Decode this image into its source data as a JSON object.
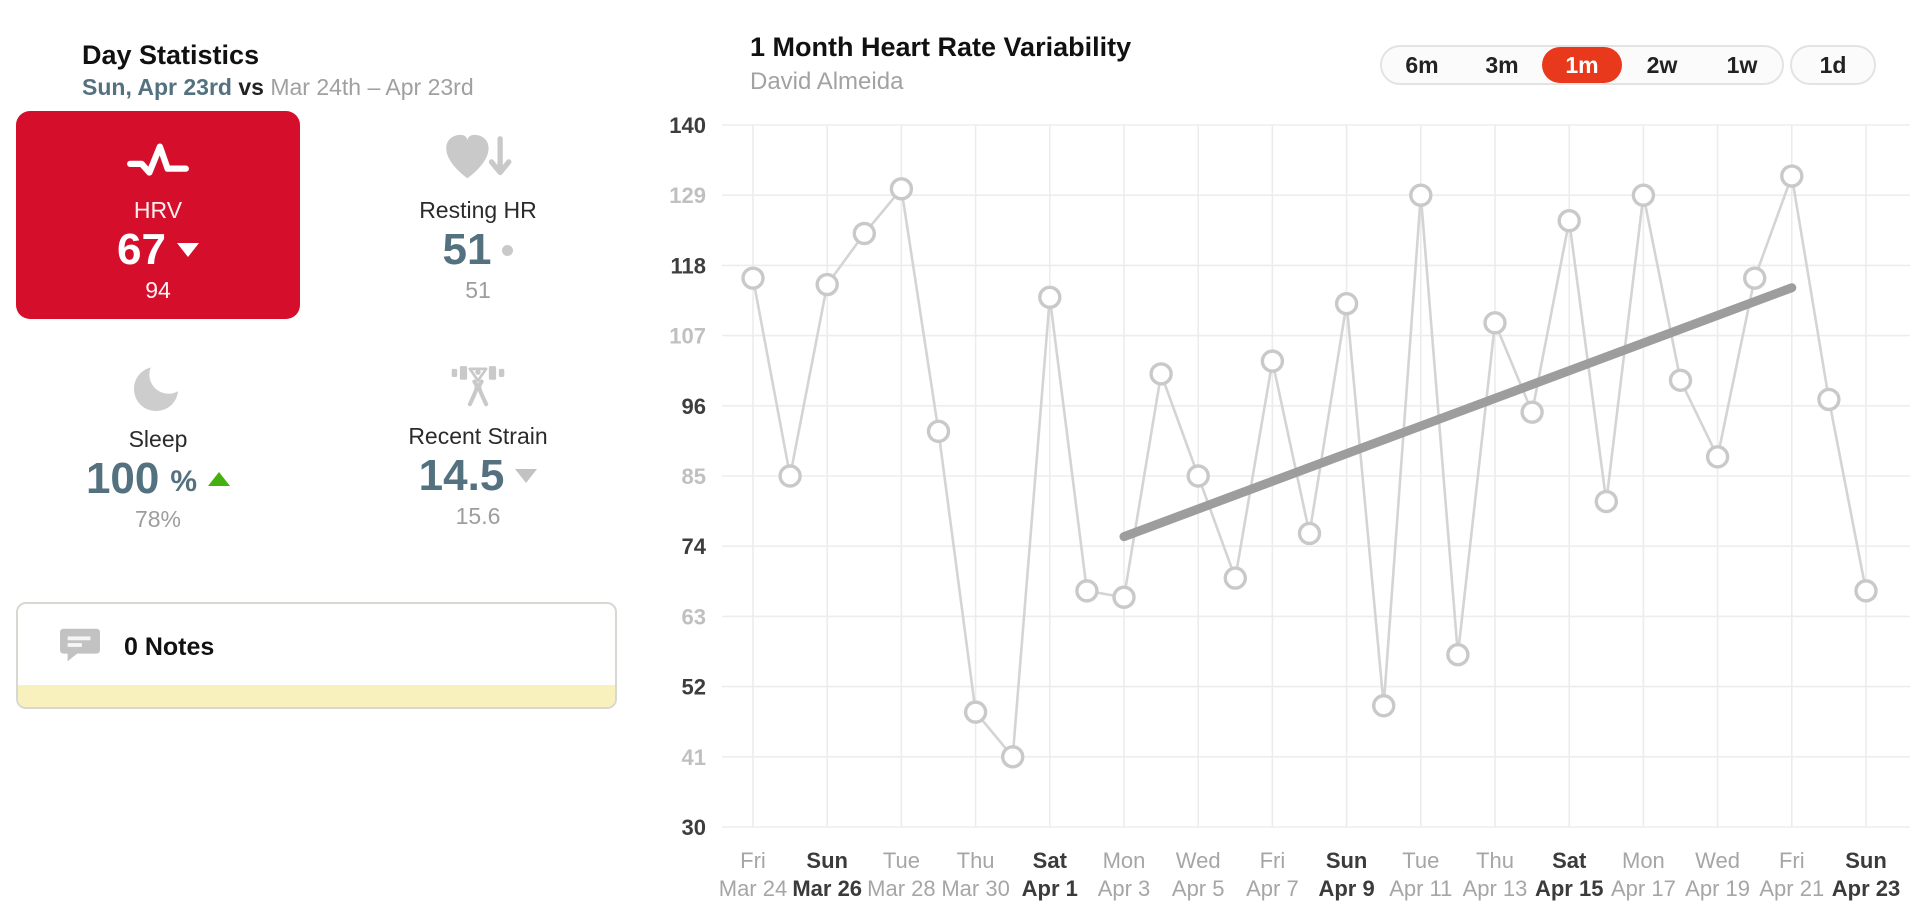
{
  "colors": {
    "accent_red": "#d50f2b",
    "button_red": "#e8391c",
    "slate_value": "#54717f",
    "green_up": "#45b10e",
    "muted_gray": "#9d9d9d",
    "notes_yellow": "#f8f1bd",
    "trend_gray": "#9d9d9d",
    "line_gray": "#d4d4d4"
  },
  "day_statistics": {
    "title": "Day Statistics",
    "subtitle_day": "Sun, Apr 23rd",
    "subtitle_vs": "vs",
    "subtitle_range": "Mar 24th – Apr 23rd",
    "stats": [
      {
        "label": "HRV",
        "value": "67",
        "suffix": "",
        "trend": "down",
        "compare": "94",
        "selected": true
      },
      {
        "label": "Resting HR",
        "value": "51",
        "suffix": "",
        "trend": "flat",
        "compare": "51",
        "selected": false
      },
      {
        "label": "Sleep",
        "value": "100",
        "suffix": "%",
        "trend": "up",
        "compare": "78%",
        "selected": false
      },
      {
        "label": "Recent Strain",
        "value": "14.5",
        "suffix": "",
        "trend": "down",
        "compare": "15.6",
        "selected": false
      }
    ],
    "notes_label": "0 Notes"
  },
  "chart_header": {
    "title": "1 Month Heart Rate Variability",
    "subtitle": "David Almeida"
  },
  "range_buttons": {
    "options": [
      "6m",
      "3m",
      "1m",
      "2w",
      "1w"
    ],
    "standalone": "1d",
    "selected": "1m"
  },
  "chart_data": {
    "type": "line",
    "title": "1 Month Heart Rate Variability",
    "person": "David Almeida",
    "ylabel": "HRV",
    "ylim": [
      30,
      140
    ],
    "y_ticks": [
      140,
      129,
      118,
      107,
      96,
      85,
      74,
      63,
      52,
      41,
      30
    ],
    "grid": true,
    "marker": "open-circle",
    "x_ticks": [
      {
        "weekday": "Fri",
        "date": "Mar 24",
        "bold": false
      },
      {
        "weekday": "Sun",
        "date": "Mar 26",
        "bold": true
      },
      {
        "weekday": "Tue",
        "date": "Mar 28",
        "bold": false
      },
      {
        "weekday": "Thu",
        "date": "Mar 30",
        "bold": false
      },
      {
        "weekday": "Sat",
        "date": "Apr 1",
        "bold": true
      },
      {
        "weekday": "Mon",
        "date": "Apr 3",
        "bold": false
      },
      {
        "weekday": "Wed",
        "date": "Apr 5",
        "bold": false
      },
      {
        "weekday": "Fri",
        "date": "Apr 7",
        "bold": false
      },
      {
        "weekday": "Sun",
        "date": "Apr 9",
        "bold": true
      },
      {
        "weekday": "Tue",
        "date": "Apr 11",
        "bold": false
      },
      {
        "weekday": "Thu",
        "date": "Apr 13",
        "bold": false
      },
      {
        "weekday": "Sat",
        "date": "Apr 15",
        "bold": true
      },
      {
        "weekday": "Mon",
        "date": "Apr 17",
        "bold": false
      },
      {
        "weekday": "Wed",
        "date": "Apr 19",
        "bold": false
      },
      {
        "weekday": "Fri",
        "date": "Apr 21",
        "bold": false
      },
      {
        "weekday": "Sun",
        "date": "Apr 23",
        "bold": true
      }
    ],
    "points": [
      {
        "date": "Mar 24",
        "value": 116
      },
      {
        "date": "Mar 25",
        "value": 85
      },
      {
        "date": "Mar 26",
        "value": 115
      },
      {
        "date": "Mar 27",
        "value": 123
      },
      {
        "date": "Mar 28",
        "value": 130
      },
      {
        "date": "Mar 29",
        "value": 92
      },
      {
        "date": "Mar 30",
        "value": 48
      },
      {
        "date": "Mar 31",
        "value": 41
      },
      {
        "date": "Apr 1",
        "value": 113
      },
      {
        "date": "Apr 2",
        "value": 67
      },
      {
        "date": "Apr 3",
        "value": 66
      },
      {
        "date": "Apr 4",
        "value": 101
      },
      {
        "date": "Apr 5",
        "value": 85
      },
      {
        "date": "Apr 6",
        "value": 69
      },
      {
        "date": "Apr 7",
        "value": 103
      },
      {
        "date": "Apr 8",
        "value": 76
      },
      {
        "date": "Apr 9",
        "value": 112
      },
      {
        "date": "Apr 10",
        "value": 49
      },
      {
        "date": "Apr 11",
        "value": 129
      },
      {
        "date": "Apr 12",
        "value": 57
      },
      {
        "date": "Apr 13",
        "value": 109
      },
      {
        "date": "Apr 14",
        "value": 95
      },
      {
        "date": "Apr 15",
        "value": 125
      },
      {
        "date": "Apr 16",
        "value": 81
      },
      {
        "date": "Apr 17",
        "value": 129
      },
      {
        "date": "Apr 18",
        "value": 100
      },
      {
        "date": "Apr 19",
        "value": 88
      },
      {
        "date": "Apr 20",
        "value": 116
      },
      {
        "date": "Apr 21",
        "value": 132
      },
      {
        "date": "Apr 22",
        "value": 97
      },
      {
        "date": "Apr 23",
        "value": 67
      }
    ],
    "trend_line": {
      "from_index": 10,
      "from_value": 75.5,
      "to_index": 28,
      "to_value": 114.5
    }
  }
}
